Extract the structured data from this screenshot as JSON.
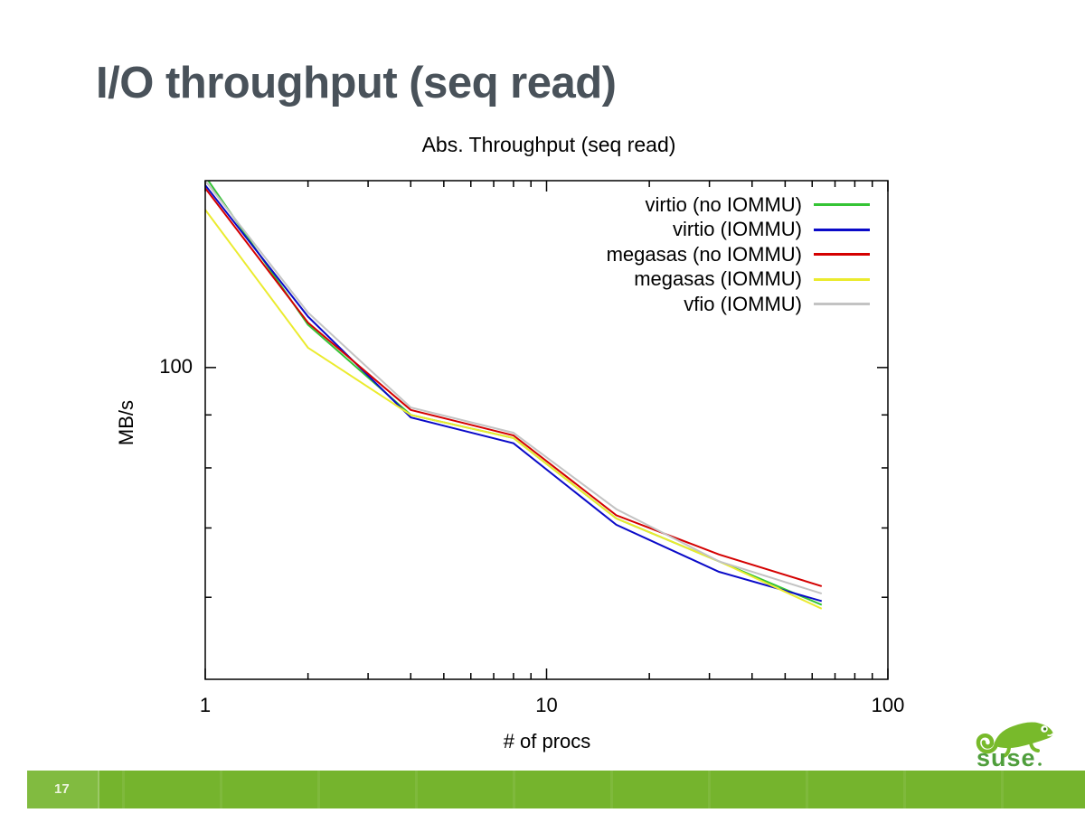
{
  "slide": {
    "title": "I/O throughput (seq read)",
    "page_number": "17",
    "brand": "suse"
  },
  "colors": {
    "title_text": "#49525a",
    "footer_green": "#75b42d",
    "logo_green": "#78ba2b",
    "wordmark_green": "#4f9e3c",
    "axis_black": "#000000"
  },
  "chart_data": {
    "type": "line",
    "title": "Abs. Throughput (seq read)",
    "xlabel": "# of procs",
    "ylabel": "MB/s",
    "x_scale": "log",
    "y_scale": "log",
    "xlim": [
      1,
      100
    ],
    "ylim": [
      50,
      151.5
    ],
    "grid": false,
    "legend_position": "inside top-right",
    "x_tick_labels": [
      1,
      10,
      100
    ],
    "y_tick_labels": [
      100
    ],
    "x_minor_ticks": [
      2,
      3,
      4,
      5,
      6,
      7,
      8,
      9,
      20,
      30,
      40,
      50,
      60,
      70,
      80,
      90
    ],
    "y_minor_ticks": [
      60,
      70,
      80,
      90
    ],
    "x": [
      1,
      2,
      4,
      8,
      16,
      32,
      64
    ],
    "series": [
      {
        "name": "virtio (no IOMMU)",
        "color": "#35c435",
        "values": [
          153,
          110,
          90,
          85.5,
          71.5,
          65,
          59
        ]
      },
      {
        "name": "virtio (IOMMU)",
        "color": "#0a0ac8",
        "values": [
          150,
          112,
          89.5,
          84.5,
          70.5,
          63.5,
          59.5
        ]
      },
      {
        "name": "megasas (no IOMMU)",
        "color": "#d40000",
        "values": [
          149,
          110.5,
          91,
          86,
          72,
          66,
          61.5
        ]
      },
      {
        "name": "megasas (IOMMU)",
        "color": "#ebeb2e",
        "values": [
          142,
          104.5,
          90,
          85.5,
          71.5,
          65,
          58.5
        ]
      },
      {
        "name": "vfio (IOMMU)",
        "color": "#c3c3c3",
        "values": [
          151.5,
          113,
          91.5,
          86.5,
          73,
          65,
          60.5
        ]
      }
    ]
  }
}
